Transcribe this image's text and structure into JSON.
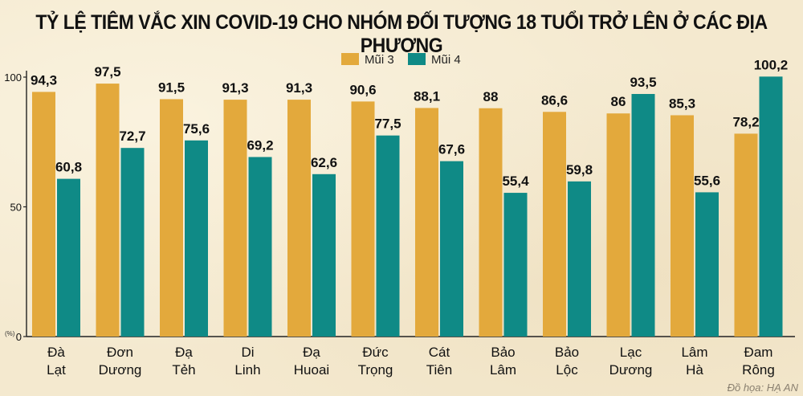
{
  "chart_data": {
    "type": "bar",
    "title": "TỶ LỆ TIÊM VẮC XIN COVID-19 CHO NHÓM ĐỐI TƯỢNG 18 TUỔI TRỞ LÊN Ở CÁC ĐỊA PHƯƠNG",
    "ylabel": "(%)",
    "ylim": [
      0,
      100
    ],
    "yticks": [
      "0",
      "50",
      "100"
    ],
    "grid": false,
    "legend": "top-center",
    "categories": [
      [
        "Đà",
        "Lạt"
      ],
      [
        "Đơn",
        "Dương"
      ],
      [
        "Đạ",
        "Tẻh"
      ],
      [
        "Di",
        "Linh"
      ],
      [
        "Đạ",
        "Huoai"
      ],
      [
        "Đức",
        "Trọng"
      ],
      [
        "Cát",
        "Tiên"
      ],
      [
        "Bảo",
        "Lâm"
      ],
      [
        "Bảo",
        "Lộc"
      ],
      [
        "Lạc",
        "Dương"
      ],
      [
        "Lâm",
        "Hà"
      ],
      [
        "Đam",
        "Rông"
      ]
    ],
    "series": [
      {
        "name": "Mũi 3",
        "color": "#e3a93c",
        "values": [
          94.3,
          97.5,
          91.5,
          91.3,
          91.3,
          90.6,
          88.1,
          88,
          86.6,
          86,
          85.3,
          78.2
        ],
        "labels": [
          "94,3",
          "97,5",
          "91,5",
          "91,3",
          "91,3",
          "90,6",
          "88,1",
          "88",
          "86,6",
          "86",
          "85,3",
          "78,2"
        ]
      },
      {
        "name": "Mũi 4",
        "color": "#0f8a86",
        "values": [
          60.8,
          72.7,
          75.6,
          69.2,
          62.6,
          77.5,
          67.6,
          55.4,
          59.8,
          93.5,
          55.6,
          100.2
        ],
        "labels": [
          "60,8",
          "72,7",
          "75,6",
          "69,2",
          "62,6",
          "77,5",
          "67,6",
          "55,4",
          "59,8",
          "93,5",
          "55,6",
          "100,2"
        ]
      }
    ]
  },
  "credit": "Đồ họa: HẠ AN"
}
